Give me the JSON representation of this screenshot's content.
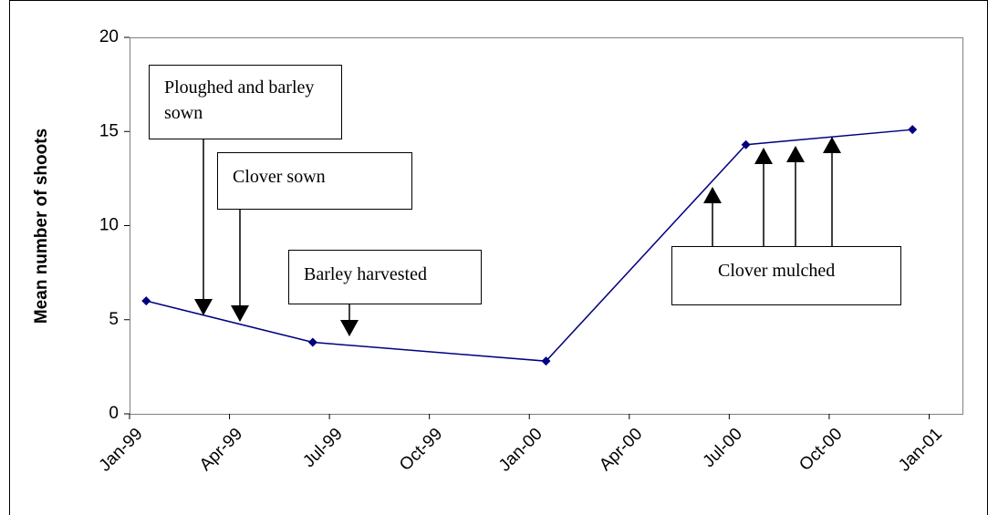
{
  "chart_data": {
    "type": "line",
    "y_label": "Mean number of shoots",
    "x": [
      "1999-01",
      "1999-06",
      "2000-01",
      "2000-07",
      "2000-12"
    ],
    "series": [
      {
        "color": "#000080",
        "values": [
          6.0,
          3.8,
          2.8,
          14.3,
          15.1
        ]
      }
    ],
    "xlim": [
      "1999-01",
      "2001-02"
    ],
    "xticks": [
      {
        "value": "1999-01",
        "label": "Jan-99"
      },
      {
        "value": "1999-04",
        "label": "Apr-99"
      },
      {
        "value": "1999-07",
        "label": "Jul-99"
      },
      {
        "value": "1999-10",
        "label": "Oct-99"
      },
      {
        "value": "2000-01",
        "label": "Jan-00"
      },
      {
        "value": "2000-04",
        "label": "Apr-00"
      },
      {
        "value": "2000-07",
        "label": "Jul-00"
      },
      {
        "value": "2000-10",
        "label": "Oct-00"
      },
      {
        "value": "2001-01",
        "label": "Jan-01"
      }
    ],
    "ylim": [
      0,
      20
    ],
    "yticks": [
      0,
      5,
      10,
      15,
      20
    ],
    "annotations": [
      "Ploughed and barley sown",
      "Clover sown",
      "Barley harvested",
      "Clover mulched"
    ]
  }
}
